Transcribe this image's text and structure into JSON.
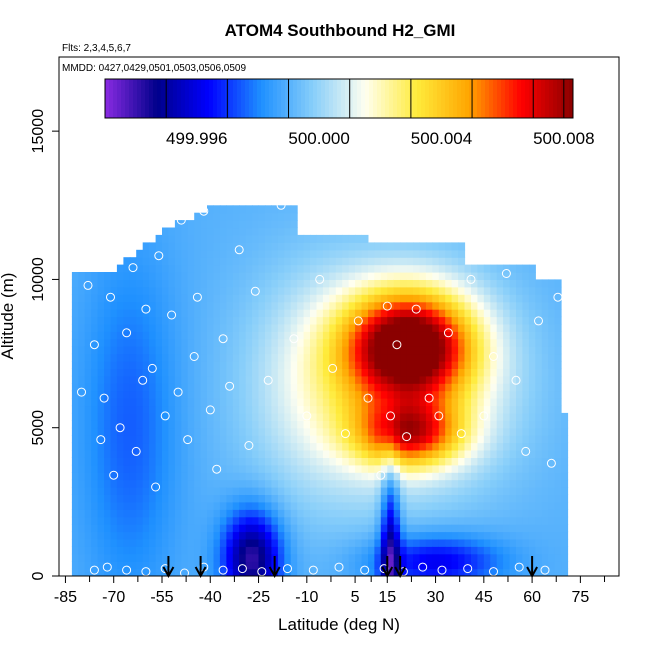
{
  "chart_data": {
    "type": "heatmap",
    "title": "ATOM4 Southbound H2_GMI",
    "annotations": [
      "Flts: 2,3,4,5,6,7",
      "MMDD: 0427,0429,0501,0503,0506,0509"
    ],
    "xlabel": "Latitude (deg N)",
    "ylabel": "Altitude (m)",
    "xlim": [
      -87,
      87
    ],
    "ylim": [
      0,
      17500
    ],
    "x_ticks": [
      -85,
      -70,
      -55,
      -40,
      -25,
      -10,
      5,
      15,
      30,
      45,
      60,
      75
    ],
    "x_tick_labels": [
      "-85",
      "-70",
      "-55",
      "-40",
      "-25",
      "-10",
      "5",
      "15",
      "30",
      "45",
      "60",
      "75"
    ],
    "x_minor_ticks": [
      -77.5,
      -62.5,
      -47.5,
      -32.5,
      -17.5,
      -2.5,
      10,
      22.5,
      37.5,
      52.5,
      67.5,
      82.5
    ],
    "y_ticks": [
      0,
      5000,
      10000,
      15000
    ],
    "y_tick_labels": [
      "0",
      "5000",
      "10000",
      "15000"
    ],
    "colorbar": {
      "range": [
        499.993,
        500.0083
      ],
      "tick_values": [
        499.996,
        500.0,
        500.004,
        500.008
      ],
      "tick_labels": [
        "499.996",
        "500.000",
        "500.004",
        "500.008"
      ],
      "color_stops": [
        "#8a2be2",
        "#00008b",
        "#0000ff",
        "#1e90ff",
        "#87cefa",
        "#fffff0",
        "#ffeb3b",
        "#ffa500",
        "#ff0000",
        "#8b0000"
      ],
      "segment_boundaries": [
        499.995,
        499.997,
        499.999,
        500.001,
        500.003,
        500.005,
        500.007,
        500.008
      ]
    },
    "field_summary": {
      "background_value": 499.999,
      "high_region_1": {
        "lat_center": 22,
        "alt_center_m": 7800,
        "value": 500.0075
      },
      "high_region_2": {
        "lat_center": 22,
        "alt_center_m": 4800,
        "value": 500.006
      },
      "low_region_1": {
        "lat_center": -27,
        "alt_center_m": 600,
        "value": 499.994
      },
      "low_region_2": {
        "lat_center": 16,
        "alt_center_m": 700,
        "value": 499.994
      }
    },
    "arrows_at_latitude": [
      -53,
      -43,
      -20,
      15,
      19,
      60
    ],
    "sample_points": [
      [
        -80,
        6200
      ],
      [
        -78,
        9800
      ],
      [
        -76,
        7800
      ],
      [
        -74,
        4600
      ],
      [
        -73,
        6000
      ],
      [
        -71,
        9400
      ],
      [
        -70,
        3400
      ],
      [
        -68,
        5000
      ],
      [
        -66,
        8200
      ],
      [
        -64,
        10400
      ],
      [
        -63,
        4200
      ],
      [
        -61,
        6600
      ],
      [
        -60,
        9000
      ],
      [
        -58,
        7000
      ],
      [
        -57,
        3000
      ],
      [
        -56,
        10800
      ],
      [
        -54,
        5400
      ],
      [
        -52,
        8800
      ],
      [
        -50,
        6200
      ],
      [
        -49,
        12000
      ],
      [
        -47,
        4600
      ],
      [
        -45,
        7400
      ],
      [
        -44,
        9400
      ],
      [
        -42,
        12300
      ],
      [
        -40,
        5600
      ],
      [
        -38,
        3600
      ],
      [
        -36,
        8000
      ],
      [
        -34,
        6400
      ],
      [
        -31,
        11000
      ],
      [
        -28,
        4400
      ],
      [
        -26,
        9600
      ],
      [
        -22,
        6600
      ],
      [
        -18,
        12500
      ],
      [
        -14,
        8000
      ],
      [
        -10,
        5400
      ],
      [
        -6,
        10000
      ],
      [
        -2,
        7000
      ],
      [
        2,
        4800
      ],
      [
        6,
        8600
      ],
      [
        9,
        6000
      ],
      [
        13,
        3400
      ],
      [
        15,
        9100
      ],
      [
        16,
        5400
      ],
      [
        18,
        7800
      ],
      [
        21,
        4700
      ],
      [
        24,
        9000
      ],
      [
        28,
        6000
      ],
      [
        31,
        5400
      ],
      [
        34,
        8200
      ],
      [
        38,
        4800
      ],
      [
        41,
        10000
      ],
      [
        45,
        5400
      ],
      [
        48,
        7400
      ],
      [
        52,
        10200
      ],
      [
        55,
        6600
      ],
      [
        58,
        4200
      ],
      [
        62,
        8600
      ],
      [
        66,
        3800
      ],
      [
        68,
        9400
      ],
      [
        -76,
        200
      ],
      [
        -72,
        300
      ],
      [
        -66,
        200
      ],
      [
        -60,
        150
      ],
      [
        -54,
        250
      ],
      [
        -48,
        100
      ],
      [
        -42,
        300
      ],
      [
        -36,
        200
      ],
      [
        -30,
        250
      ],
      [
        -24,
        150
      ],
      [
        -16,
        250
      ],
      [
        -8,
        200
      ],
      [
        0,
        300
      ],
      [
        8,
        200
      ],
      [
        14,
        250
      ],
      [
        20,
        150
      ],
      [
        26,
        300
      ],
      [
        32,
        200
      ],
      [
        40,
        250
      ],
      [
        48,
        150
      ],
      [
        56,
        300
      ],
      [
        64,
        200
      ]
    ]
  }
}
